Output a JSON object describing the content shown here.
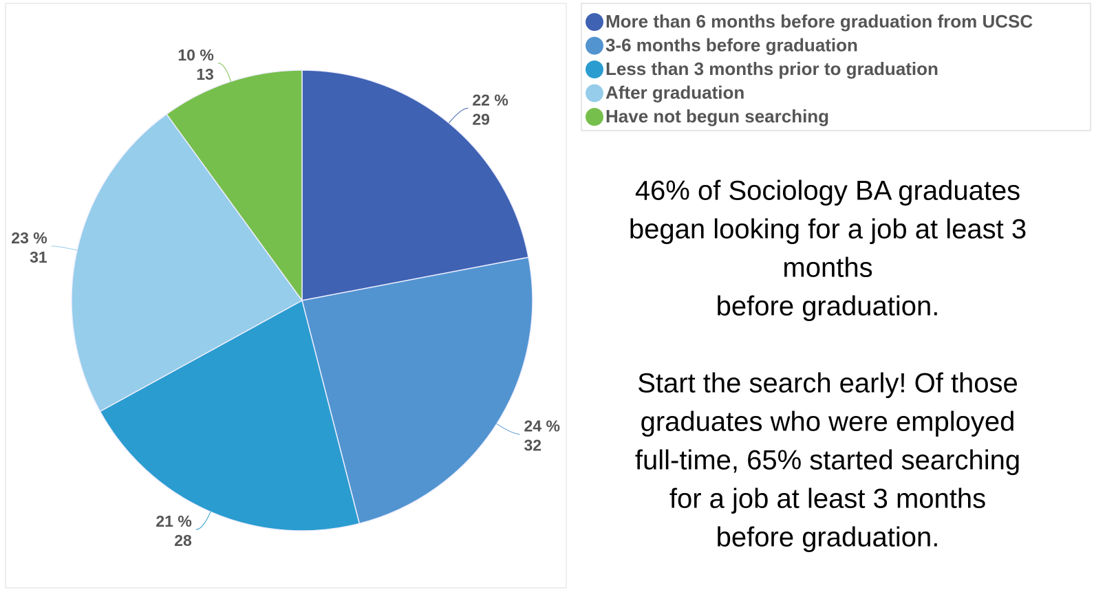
{
  "chart_data": {
    "type": "pie",
    "categories": [
      "More than 6 months before graduation from UCSC",
      "3-6 months before graduation",
      "Less than 3 months prior to graduation",
      "After graduation",
      "Have not begun searching"
    ],
    "values": [
      22,
      24,
      21,
      23,
      10
    ],
    "value_labels": [
      "22 %",
      "24 %",
      "21 %",
      "23 %",
      "10 %"
    ],
    "counts": [
      29,
      32,
      28,
      31,
      13
    ],
    "colors": [
      "#3f62b3",
      "#5294d0",
      "#2a9ccf",
      "#95cdea",
      "#77bf4c"
    ],
    "legend": "top-right",
    "annotations": [
      [
        "46% of Sociology BA graduates",
        "began looking for a job at least 3",
        "months",
        "before graduation."
      ],
      [
        "Start the search early! Of those",
        "graduates who were employed",
        "full-time, 65% started searching",
        "for a job at least 3 months",
        "before graduation."
      ]
    ]
  }
}
